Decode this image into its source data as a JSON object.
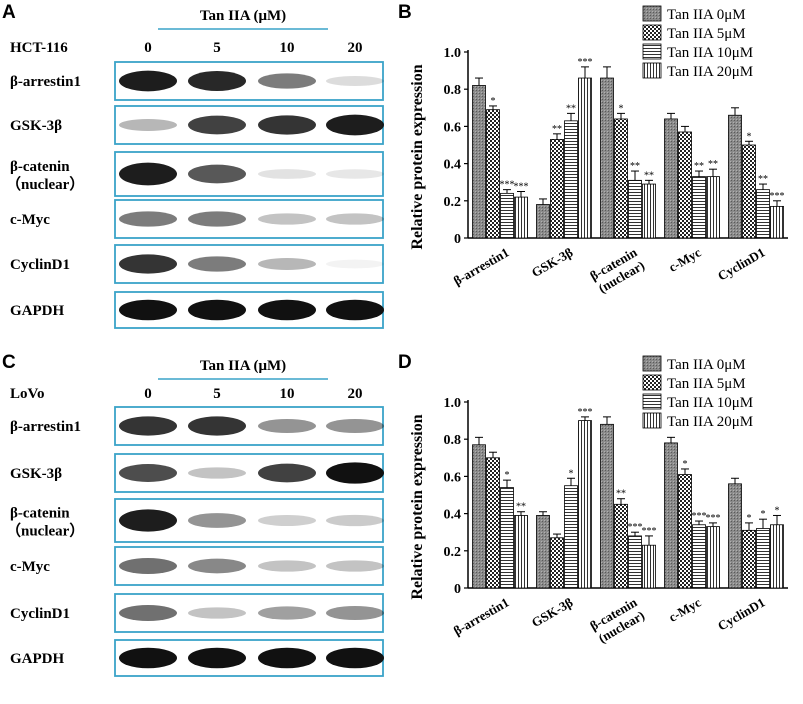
{
  "panels": {
    "a": "A",
    "b": "B",
    "c": "C",
    "d": "D"
  },
  "blots": [
    {
      "treatment_label": "Tan IIA (μM)",
      "cell_line": "HCT-116",
      "doses": [
        "0",
        "5",
        "10",
        "20"
      ],
      "rows": [
        {
          "label": "β-arrestin1",
          "sublabel": "",
          "bands": [
            0.95,
            0.9,
            0.55,
            0.15
          ]
        },
        {
          "label": "GSK-3β",
          "sublabel": "",
          "bands": [
            0.3,
            0.8,
            0.85,
            0.95
          ]
        },
        {
          "label": "β-catenin",
          "sublabel": "（nuclear）",
          "bands": [
            0.95,
            0.7,
            0.12,
            0.1
          ]
        },
        {
          "label": "c-Myc",
          "sublabel": "",
          "bands": [
            0.55,
            0.55,
            0.25,
            0.25
          ]
        },
        {
          "label": "CyclinD1",
          "sublabel": "",
          "bands": [
            0.85,
            0.55,
            0.3,
            0.05
          ]
        },
        {
          "label": "GAPDH",
          "sublabel": "",
          "bands": [
            1.0,
            1.0,
            1.0,
            1.0
          ]
        }
      ]
    },
    {
      "treatment_label": "Tan IIA (μM)",
      "cell_line": "LoVo",
      "doses": [
        "0",
        "5",
        "10",
        "20"
      ],
      "rows": [
        {
          "label": "β-arrestin1",
          "sublabel": "",
          "bands": [
            0.85,
            0.85,
            0.45,
            0.45
          ]
        },
        {
          "label": "GSK-3β",
          "sublabel": "",
          "bands": [
            0.75,
            0.25,
            0.8,
            1.0
          ]
        },
        {
          "label": "β-catenin",
          "sublabel": "（nuclear）",
          "bands": [
            0.95,
            0.45,
            0.2,
            0.22
          ]
        },
        {
          "label": "c-Myc",
          "sublabel": "",
          "bands": [
            0.6,
            0.5,
            0.25,
            0.25
          ]
        },
        {
          "label": "CyclinD1",
          "sublabel": "",
          "bands": [
            0.6,
            0.25,
            0.4,
            0.45
          ]
        },
        {
          "label": "GAPDH",
          "sublabel": "",
          "bands": [
            1.0,
            1.0,
            1.0,
            1.0
          ]
        }
      ]
    }
  ],
  "chart_data": [
    {
      "type": "bar",
      "ylabel": "Relative protein expression",
      "ylim": [
        0,
        1.0
      ],
      "yticks": [
        "0",
        "0.2",
        "0.4",
        "0.6",
        "0.8",
        "1.0"
      ],
      "categories": [
        "β-arrestin1",
        "GSK-3β",
        "β-catenin (nuclear)",
        "c-Myc",
        "CyclinD1"
      ],
      "category_lines": [
        [
          "β-arrestin1"
        ],
        [
          "GSK-3β"
        ],
        [
          "β-catenin",
          "(nuclear)"
        ],
        [
          "c-Myc"
        ],
        [
          "CyclinD1"
        ]
      ],
      "legend": [
        "Tan IIA 0μM",
        "Tan IIA 5μM",
        "Tan IIA 10μM",
        "Tan IIA 20μM"
      ],
      "series": [
        {
          "name": "Tan IIA 0μM",
          "values": [
            0.82,
            0.18,
            0.86,
            0.64,
            0.66
          ],
          "errors": [
            0.04,
            0.03,
            0.06,
            0.03,
            0.04
          ],
          "sig": [
            "",
            "",
            "",
            "",
            ""
          ]
        },
        {
          "name": "Tan IIA 5μM",
          "values": [
            0.69,
            0.53,
            0.64,
            0.57,
            0.5
          ],
          "errors": [
            0.02,
            0.03,
            0.03,
            0.03,
            0.02
          ],
          "sig": [
            "*",
            "**",
            "*",
            "",
            "*"
          ]
        },
        {
          "name": "Tan IIA 10μM",
          "values": [
            0.24,
            0.63,
            0.31,
            0.33,
            0.26
          ],
          "errors": [
            0.02,
            0.04,
            0.05,
            0.03,
            0.03
          ],
          "sig": [
            "***",
            "**",
            "**",
            "**",
            "**"
          ]
        },
        {
          "name": "Tan IIA 20μM",
          "values": [
            0.22,
            0.86,
            0.29,
            0.33,
            0.17
          ],
          "errors": [
            0.03,
            0.06,
            0.02,
            0.04,
            0.03
          ],
          "sig": [
            "***",
            "***",
            "**",
            "**",
            "***"
          ]
        }
      ]
    },
    {
      "type": "bar",
      "ylabel": "Relative protein expression",
      "ylim": [
        0,
        1.0
      ],
      "yticks": [
        "0",
        "0.2",
        "0.4",
        "0.6",
        "0.8",
        "1.0"
      ],
      "categories": [
        "β-arrestin1",
        "GSK-3β",
        "β-catenin (nuclear)",
        "c-Myc",
        "CyclinD1"
      ],
      "category_lines": [
        [
          "β-arrestin1"
        ],
        [
          "GSK-3β"
        ],
        [
          "β-catenin",
          "(nuclear)"
        ],
        [
          "c-Myc"
        ],
        [
          "CyclinD1"
        ]
      ],
      "legend": [
        "Tan IIA 0μM",
        "Tan IIA 5μM",
        "Tan IIA 10μM",
        "Tan IIA 20μM"
      ],
      "series": [
        {
          "name": "Tan IIA 0μM",
          "values": [
            0.77,
            0.39,
            0.88,
            0.78,
            0.56
          ],
          "errors": [
            0.04,
            0.02,
            0.04,
            0.03,
            0.03
          ],
          "sig": [
            "",
            "",
            "",
            "",
            ""
          ]
        },
        {
          "name": "Tan IIA 5μM",
          "values": [
            0.7,
            0.27,
            0.45,
            0.61,
            0.31
          ],
          "errors": [
            0.03,
            0.02,
            0.03,
            0.03,
            0.04
          ],
          "sig": [
            "",
            "",
            "**",
            "*",
            "*"
          ]
        },
        {
          "name": "Tan IIA 10μM",
          "values": [
            0.54,
            0.55,
            0.28,
            0.34,
            0.32
          ],
          "errors": [
            0.04,
            0.04,
            0.02,
            0.02,
            0.05
          ],
          "sig": [
            "*",
            "*",
            "***",
            "***",
            "*"
          ]
        },
        {
          "name": "Tan IIA 20μM",
          "values": [
            0.39,
            0.9,
            0.23,
            0.33,
            0.34
          ],
          "errors": [
            0.02,
            0.02,
            0.05,
            0.02,
            0.05
          ],
          "sig": [
            "**",
            "***",
            "***",
            "***",
            "*"
          ]
        }
      ]
    }
  ]
}
